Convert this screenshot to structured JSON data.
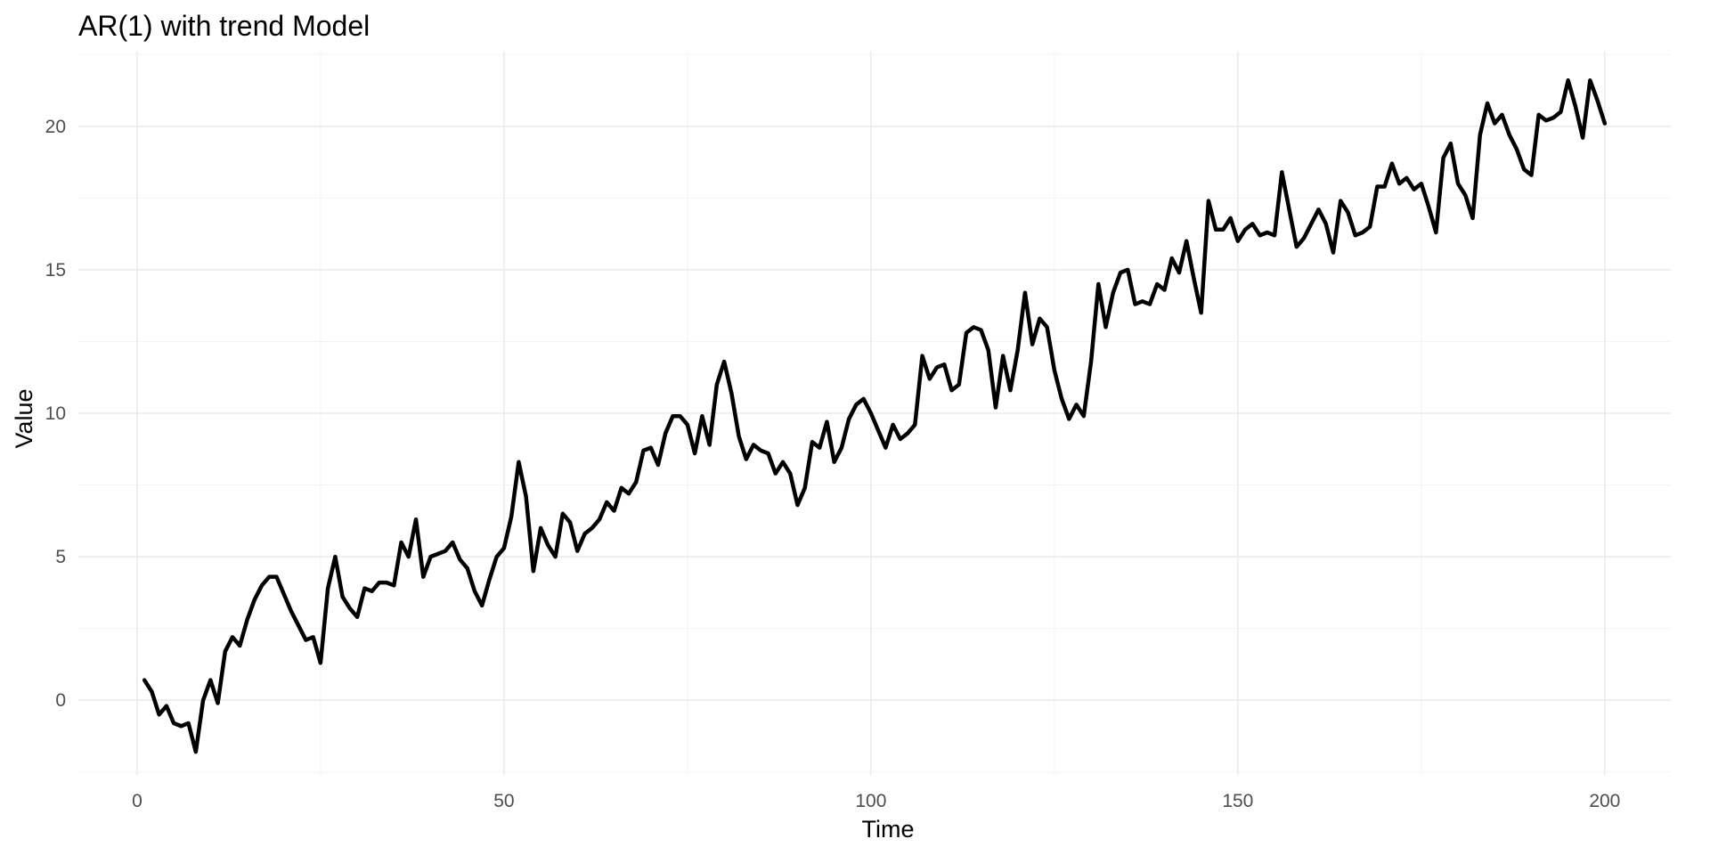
{
  "chart_data": {
    "type": "line",
    "title": "AR(1) with trend Model",
    "xlabel": "Time",
    "ylabel": "Value",
    "xlim": [
      -8,
      209
    ],
    "ylim": [
      -2.6,
      22.6
    ],
    "x_ticks": [
      0,
      50,
      100,
      150,
      200
    ],
    "y_ticks": [
      0,
      5,
      10,
      15,
      20
    ],
    "x_tick_labels": [
      "0",
      "50",
      "100",
      "150",
      "200"
    ],
    "y_tick_labels": [
      "0",
      "5",
      "10",
      "15",
      "20"
    ],
    "grid": true,
    "legend": "none",
    "line_color": "#000000",
    "series": [
      {
        "x": [
          1,
          2,
          3,
          4,
          5,
          6,
          7,
          8,
          9,
          10,
          11,
          12,
          13,
          14,
          15,
          16,
          17,
          18,
          19,
          20,
          21,
          22,
          23,
          24,
          25,
          26,
          27,
          28,
          29,
          30,
          31,
          32,
          33,
          34,
          35,
          36,
          37,
          38,
          39,
          40,
          41,
          42,
          43,
          44,
          45,
          46,
          47,
          48,
          49,
          50,
          51,
          52,
          53,
          54,
          55,
          56,
          57,
          58,
          59,
          60,
          61,
          62,
          63,
          64,
          65,
          66,
          67,
          68,
          69,
          70,
          71,
          72,
          73,
          74,
          75,
          76,
          77,
          78,
          79,
          80,
          81,
          82,
          83,
          84,
          85,
          86,
          87,
          88,
          89,
          90,
          91,
          92,
          93,
          94,
          95,
          96,
          97,
          98,
          99,
          100,
          101,
          102,
          103,
          104,
          105,
          106,
          107,
          108,
          109,
          110,
          111,
          112,
          113,
          114,
          115,
          116,
          117,
          118,
          119,
          120,
          121,
          122,
          123,
          124,
          125,
          126,
          127,
          128,
          129,
          130,
          131,
          132,
          133,
          134,
          135,
          136,
          137,
          138,
          139,
          140,
          141,
          142,
          143,
          144,
          145,
          146,
          147,
          148,
          149,
          150,
          151,
          152,
          153,
          154,
          155,
          156,
          157,
          158,
          159,
          160,
          161,
          162,
          163,
          164,
          165,
          166,
          167,
          168,
          169,
          170,
          171,
          172,
          173,
          174,
          175,
          176,
          177,
          178,
          179,
          180,
          181,
          182,
          183,
          184,
          185,
          186,
          187,
          188,
          189,
          190,
          191,
          192,
          193,
          194,
          195,
          196,
          197,
          198,
          199,
          200
        ],
        "y": [
          0.7,
          0.3,
          -0.5,
          -0.2,
          -0.8,
          -0.9,
          -0.8,
          -1.8,
          0.0,
          0.7,
          -0.1,
          1.7,
          2.2,
          1.9,
          2.8,
          3.5,
          4.0,
          4.3,
          4.3,
          3.7,
          3.1,
          2.6,
          2.1,
          2.2,
          1.3,
          3.9,
          5.0,
          3.6,
          3.2,
          2.9,
          3.9,
          3.8,
          4.1,
          4.1,
          4.0,
          5.5,
          5.0,
          6.3,
          4.3,
          5.0,
          5.1,
          5.2,
          5.5,
          4.9,
          4.6,
          3.8,
          3.3,
          4.2,
          5.0,
          5.3,
          6.4,
          8.3,
          7.1,
          4.5,
          6.0,
          5.4,
          5.0,
          6.5,
          6.2,
          5.2,
          5.8,
          6.0,
          6.3,
          6.9,
          6.6,
          7.4,
          7.2,
          7.6,
          8.7,
          8.8,
          8.2,
          9.3,
          9.9,
          9.9,
          9.6,
          8.6,
          9.9,
          8.9,
          11.0,
          11.8,
          10.7,
          9.2,
          8.4,
          8.9,
          8.7,
          8.6,
          7.9,
          8.3,
          7.9,
          6.8,
          7.4,
          9.0,
          8.8,
          9.7,
          8.3,
          8.8,
          9.8,
          10.3,
          10.5,
          10.0,
          9.4,
          8.8,
          9.6,
          9.1,
          9.3,
          9.6,
          12.0,
          11.2,
          11.6,
          11.7,
          10.8,
          11.0,
          12.8,
          13.0,
          12.9,
          12.2,
          10.2,
          12.0,
          10.8,
          12.2,
          14.2,
          12.4,
          13.3,
          13.0,
          11.5,
          10.5,
          9.8,
          10.3,
          9.9,
          11.8,
          14.5,
          13.0,
          14.2,
          14.9,
          15.0,
          13.8,
          13.9,
          13.8,
          14.5,
          14.3,
          15.4,
          14.9,
          16.0,
          14.7,
          13.5,
          17.4,
          16.4,
          16.4,
          16.8,
          16.0,
          16.4,
          16.6,
          16.2,
          16.3,
          16.2,
          18.4,
          17.1,
          15.8,
          16.1,
          16.6,
          17.1,
          16.6,
          15.6,
          17.4,
          17.0,
          16.2,
          16.3,
          16.5,
          17.9,
          17.9,
          18.7,
          18.0,
          18.2,
          17.8,
          18.0,
          17.2,
          16.3,
          18.9,
          19.4,
          18.0,
          17.6,
          16.8,
          19.7,
          20.8,
          20.1,
          20.4,
          19.7,
          19.2,
          18.5,
          18.3,
          20.4,
          20.2,
          20.3,
          20.5,
          21.6,
          20.7,
          19.6,
          21.6,
          20.9,
          20.1
        ]
      }
    ]
  }
}
